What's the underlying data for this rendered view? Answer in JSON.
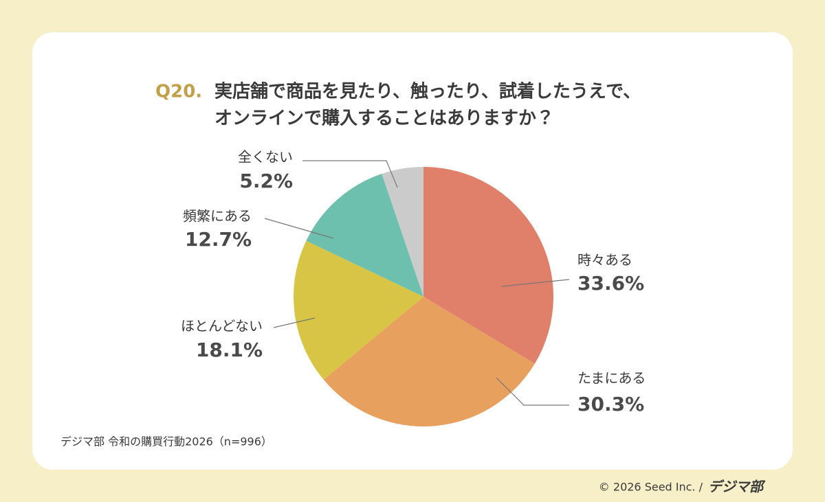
{
  "chart_data": {
    "type": "pie",
    "question": "Q20.",
    "title_lines": [
      "実店舗で商品を見たり、触ったり、試着したうえで、",
      "オンラインで購入することはありますか？"
    ],
    "categories": [
      "時々ある",
      "たまにある",
      "ほとんどない",
      "頻繁にある",
      "全くない"
    ],
    "values": [
      33.6,
      30.3,
      18.1,
      12.7,
      5.2
    ],
    "value_labels": [
      "33.6%",
      "30.3%",
      "18.1%",
      "12.7%",
      "5.2%"
    ],
    "colors": [
      "#e0806a",
      "#e8a05e",
      "#d9c545",
      "#6dc0ae",
      "#cbcbcb"
    ],
    "source": "デジマ部 令和の購買行動2026（n=996）"
  },
  "footer": {
    "copyright": "© 2026 Seed Inc. /",
    "brand": "デジマ部"
  }
}
